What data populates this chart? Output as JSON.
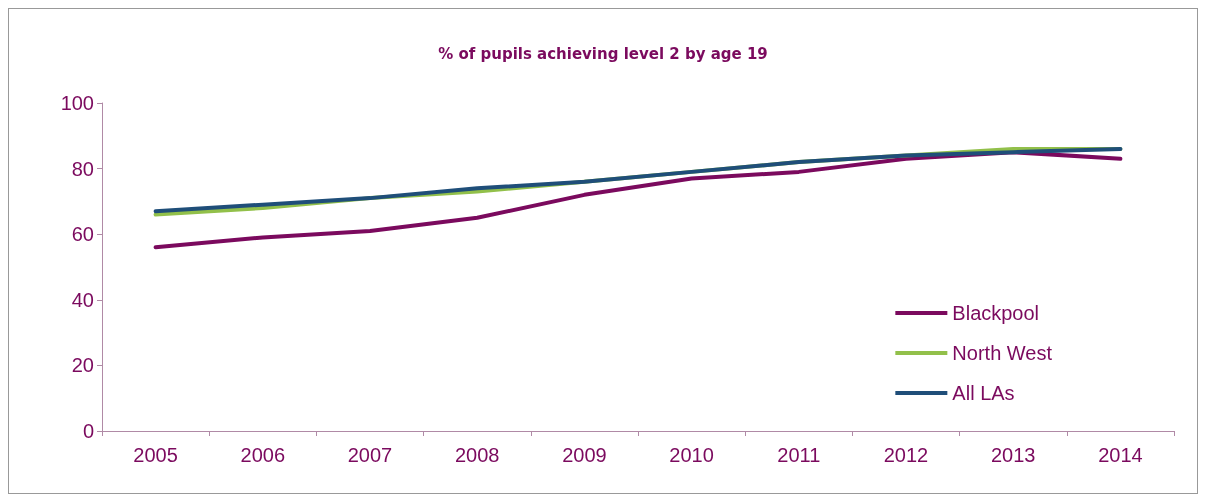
{
  "chart_data": {
    "type": "line",
    "title": "% of pupils achieving level 2 by age 19",
    "categories": [
      "2005",
      "2006",
      "2007",
      "2008",
      "2009",
      "2010",
      "2011",
      "2012",
      "2013",
      "2014"
    ],
    "series": [
      {
        "name": "Blackpool",
        "color": "#7b0a5e",
        "values": [
          56,
          59,
          61,
          65,
          72,
          77,
          79,
          83,
          85,
          83
        ]
      },
      {
        "name": "North West",
        "color": "#92c04a",
        "values": [
          66,
          68,
          71,
          73,
          76,
          79,
          82,
          84,
          86,
          86
        ]
      },
      {
        "name": "All LAs",
        "color": "#1f4e79",
        "values": [
          67,
          69,
          71,
          74,
          76,
          79,
          82,
          84,
          85,
          86
        ]
      }
    ],
    "ylim": [
      0,
      100
    ],
    "yticks": [
      0,
      20,
      40,
      60,
      80,
      100
    ],
    "grid": false,
    "legend": "bottom right",
    "marker": "none",
    "line_style": "solid"
  }
}
